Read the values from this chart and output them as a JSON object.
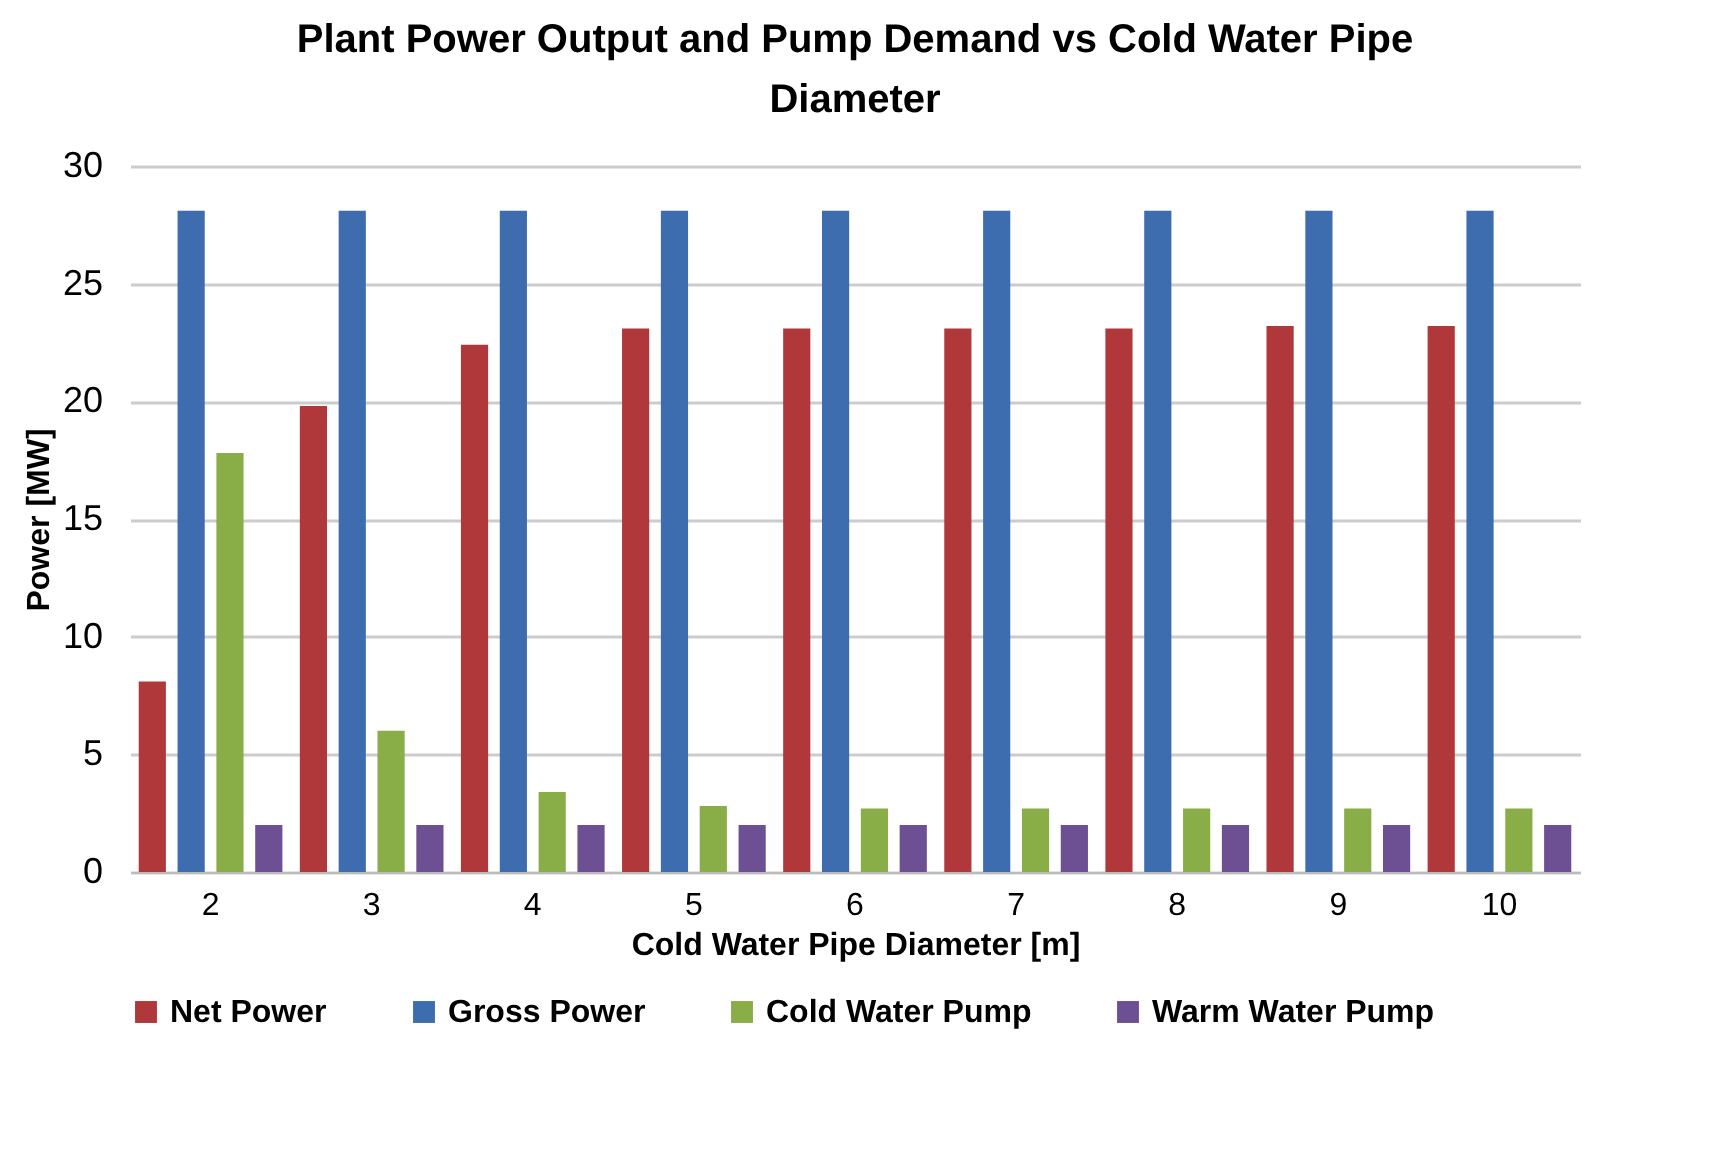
{
  "chart_data": {
    "type": "bar",
    "title": "Plant Power Output and Pump Demand vs Cold Water Pipe Diameter",
    "xlabel": "Cold Water Pipe Diameter [m]",
    "ylabel": "Power [MW]",
    "categories": [
      "2",
      "3",
      "4",
      "5",
      "6",
      "7",
      "8",
      "9",
      "10"
    ],
    "series": [
      {
        "name": "Net Power",
        "color": "#b0383b",
        "values": [
          8.1,
          19.8,
          22.4,
          23.1,
          23.1,
          23.1,
          23.1,
          23.2,
          23.2
        ]
      },
      {
        "name": "Gross Power",
        "color": "#3d6caf",
        "values": [
          28.1,
          28.1,
          28.1,
          28.1,
          28.1,
          28.1,
          28.1,
          28.1,
          28.1
        ]
      },
      {
        "name": "Cold Water Pump",
        "color": "#89ae47",
        "values": [
          17.8,
          6.0,
          3.4,
          2.8,
          2.7,
          2.7,
          2.7,
          2.7,
          2.7
        ]
      },
      {
        "name": "Warm Water Pump",
        "color": "#6d4f93",
        "values": [
          2.0,
          2.0,
          2.0,
          2.0,
          2.0,
          2.0,
          2.0,
          2.0,
          2.0
        ]
      }
    ],
    "ylim": [
      0,
      30
    ],
    "yticks": [
      0,
      5,
      10,
      15,
      20,
      25,
      30
    ],
    "grid": "y",
    "legend": "bottom"
  }
}
